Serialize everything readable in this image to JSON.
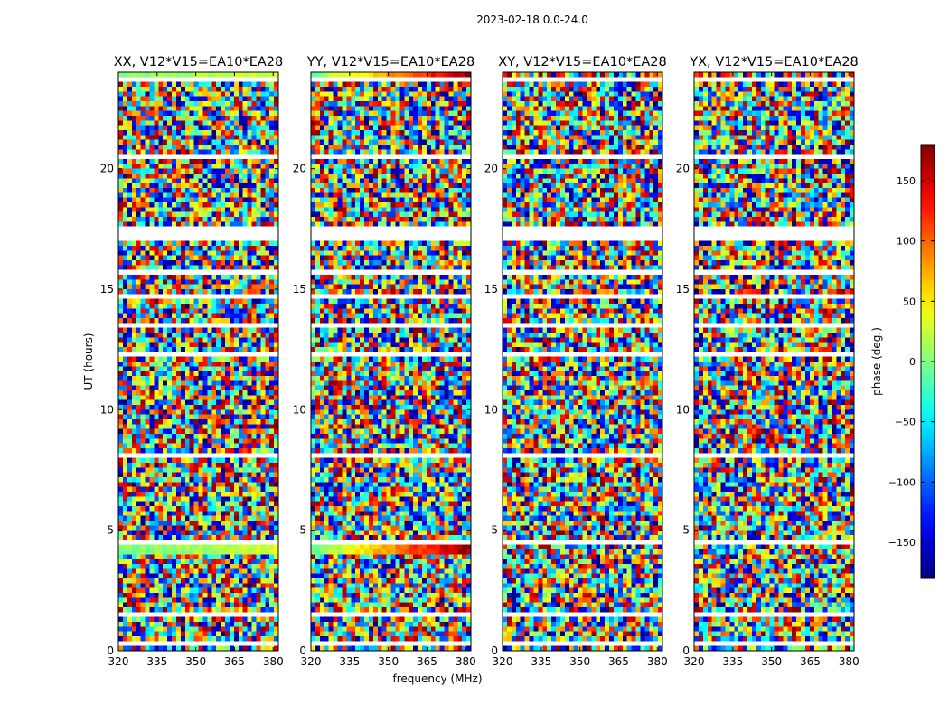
{
  "chart_data": {
    "type": "heatmap",
    "suptitle": "2023-02-18 0.0-24.0",
    "xlabel": "frequency (MHz)",
    "ylabel": "UT (hours)",
    "xlim": [
      320,
      382
    ],
    "ylim": [
      0,
      24
    ],
    "xticks": [
      "320",
      "335",
      "350",
      "365",
      "380"
    ],
    "yticks": [
      "0",
      "5",
      "10",
      "15",
      "20"
    ],
    "panels": [
      {
        "title": "XX, V12*V15=EA10*EA28"
      },
      {
        "title": "YY, V12*V15=EA10*EA28"
      },
      {
        "title": "XY, V12*V15=EA10*EA28"
      },
      {
        "title": "YX, V12*V15=EA10*EA28"
      }
    ],
    "colorbar": {
      "label": "phase (deg.)",
      "range": [
        -180,
        180
      ],
      "ticks": [
        "150",
        "100",
        "50",
        "0",
        "−50",
        "−100",
        "−150"
      ],
      "tick_values": [
        150,
        100,
        50,
        0,
        -50,
        -100,
        -150
      ],
      "colormap": "jet"
    },
    "flagged_gaps_ut_hours": [
      [
        0.18,
        0.3
      ],
      [
        0.6,
        0.66
      ],
      [
        0.95,
        1.05
      ],
      [
        1.45,
        1.5
      ],
      [
        2.2,
        2.25
      ],
      [
        3.05,
        3.1
      ],
      [
        3.78,
        3.82
      ],
      [
        4.4,
        4.6
      ],
      [
        6.9,
        6.95
      ],
      [
        7.4,
        7.45
      ],
      [
        8.1,
        8.15
      ],
      [
        9.2,
        9.25
      ],
      [
        10.95,
        11.0
      ],
      [
        12.2,
        12.35
      ],
      [
        13.45,
        13.5
      ],
      [
        14.65,
        14.85
      ],
      [
        15.7,
        15.75
      ],
      [
        16.35,
        16.4
      ],
      [
        17.05,
        17.55
      ],
      [
        18.15,
        18.2
      ],
      [
        19.15,
        19.2
      ],
      [
        20.35,
        20.55
      ],
      [
        21.55,
        21.6
      ],
      [
        22.4,
        22.45
      ],
      [
        23.0,
        23.05
      ],
      [
        23.65,
        23.7
      ]
    ]
  }
}
